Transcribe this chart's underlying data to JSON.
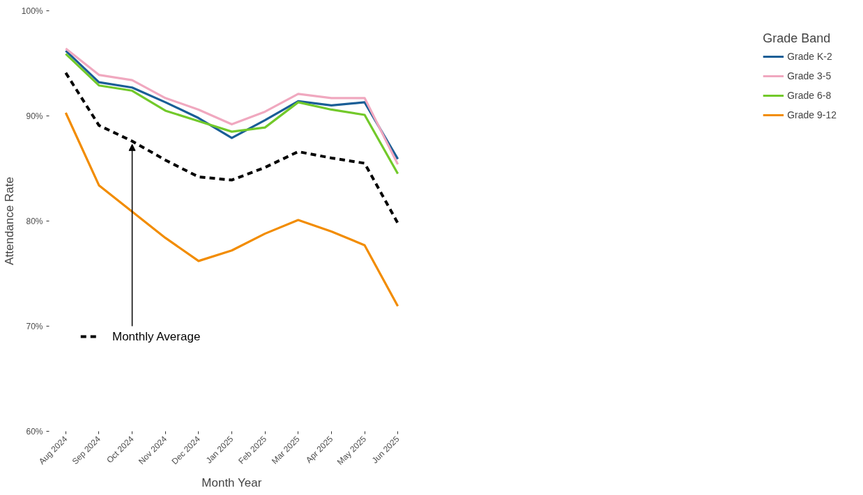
{
  "chart_data": {
    "type": "line",
    "xlabel": "Month Year",
    "ylabel": "Attendance Rate",
    "legend_title": "Grade Band",
    "legend": "right",
    "grid": false,
    "marker": "none",
    "categories": [
      "Aug 2024",
      "Sep 2024",
      "Oct 2024",
      "Nov 2024",
      "Dec 2024",
      "Jan 2025",
      "Feb 2025",
      "Mar 2025",
      "Apr 2025",
      "May 2025",
      "Jun 2025"
    ],
    "ylim": [
      60,
      100
    ],
    "yticks": [
      {
        "value": 60,
        "label": "60%"
      },
      {
        "value": 70,
        "label": "70%"
      },
      {
        "value": 80,
        "label": "80%"
      },
      {
        "value": 90,
        "label": "90%"
      },
      {
        "value": 100,
        "label": "100%"
      }
    ],
    "series": [
      {
        "name": "Grade K-2",
        "color": "#1a5e96",
        "line_style": "solid",
        "values": [
          96.2,
          93.2,
          92.7,
          91.3,
          89.8,
          87.9,
          89.6,
          91.4,
          91.0,
          91.3,
          85.9
        ]
      },
      {
        "name": "Grade 3-5",
        "color": "#f0a8bf",
        "line_style": "solid",
        "values": [
          96.4,
          93.9,
          93.4,
          91.7,
          90.6,
          89.2,
          90.4,
          92.1,
          91.7,
          91.7,
          85.4
        ]
      },
      {
        "name": "Grade 6-8",
        "color": "#72c92a",
        "line_style": "solid",
        "values": [
          95.9,
          92.9,
          92.4,
          90.5,
          89.5,
          88.5,
          88.9,
          91.3,
          90.6,
          90.1,
          84.5
        ]
      },
      {
        "name": "Grade 9-12",
        "color": "#f28c00",
        "line_style": "solid",
        "values": [
          90.3,
          83.4,
          80.9,
          78.4,
          76.2,
          77.2,
          78.8,
          80.1,
          79.0,
          77.7,
          71.9
        ]
      },
      {
        "color": "#000000",
        "line_style": "dashed",
        "values": [
          94.1,
          89.1,
          87.6,
          85.8,
          84.2,
          83.9,
          85.1,
          86.6,
          86.0,
          85.5,
          79.8
        ]
      }
    ],
    "annotations": [
      {
        "text": "Monthly Average",
        "x": "Oct 2024",
        "y": 87.6
      }
    ]
  }
}
